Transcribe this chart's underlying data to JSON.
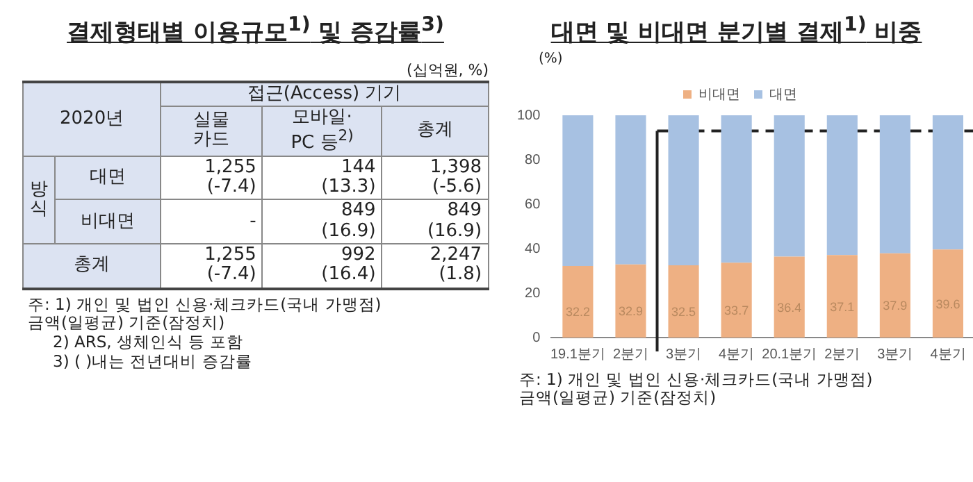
{
  "chart_data": [
    {
      "type": "other",
      "title": "결제형태별 이용규모$^{1)}$ 및 증감률$^{3)}$",
      "subtitle": "(십억원, %)",
      "legend_title": "2020년",
      "xlabel": "접근(Access) 기기",
      "ylabel": "방식",
      "categories": [
        "실물\n카드",
        "모바일·\nPC 등$^{2)}$",
        "총계"
      ],
      "y_categories": [
        "대면",
        "비대면",
        "총계"
      ],
      "cell_labels": [
        [
          "1,255\n(-7.4)",
          "144\n(13.3)",
          "1,398\n(-5.6)"
        ],
        [
          "-",
          "849\n(16.9)",
          "849\n(16.9)"
        ],
        [
          "1,255\n(-7.4)",
          "992\n(16.4)",
          "2,247\n(1.8)"
        ]
      ],
      "annotations": [
        "주: 1) 개인 및 법인 신용·체크카드(국내 가맹점)\n금액(일평균) 기준(잠정치)",
        "2) ARS, 생체인식 등 포함",
        "3) ( )내는 전년대비 증감률"
      ]
    },
    {
      "type": "bar",
      "title": "대면 및 비대면 분기별 결제$^{1)}$ 비중",
      "ylabel": "(%)",
      "stacked": true,
      "legend": "top",
      "grid": false,
      "categories": [
        "19.1분기",
        "2분기",
        "3분기",
        "4분기",
        "20.1분기",
        "2분기",
        "3분기",
        "4분기"
      ],
      "ylim": [
        0,
        100
      ],
      "yticks": [
        0,
        20,
        40,
        60,
        80,
        100
      ],
      "ref_lines": [
        {
          "axis": "y",
          "value": 93,
          "line_style": "dashed",
          "color": "#222222"
        }
      ],
      "series": [
        {
          "name": "비대면",
          "color": "#eeb083",
          "values": [
            32.2,
            32.9,
            32.5,
            33.7,
            36.4,
            37.1,
            37.9,
            39.6
          ],
          "value_labels": [
            "32.2",
            "32.9",
            "32.5",
            "33.7",
            "36.4",
            "37.1",
            "37.9",
            "39.6"
          ]
        },
        {
          "name": "대면",
          "color": "#a7c1e2",
          "values": [
            67.8,
            67.1,
            67.5,
            66.3,
            63.6,
            62.9,
            62.1,
            60.4
          ]
        }
      ],
      "annotations": [
        "주: 1) 개인 및 법인 신용·체크카드(국내 가맹점)\n금액(일평균) 기준(잠정치)"
      ]
    }
  ]
}
